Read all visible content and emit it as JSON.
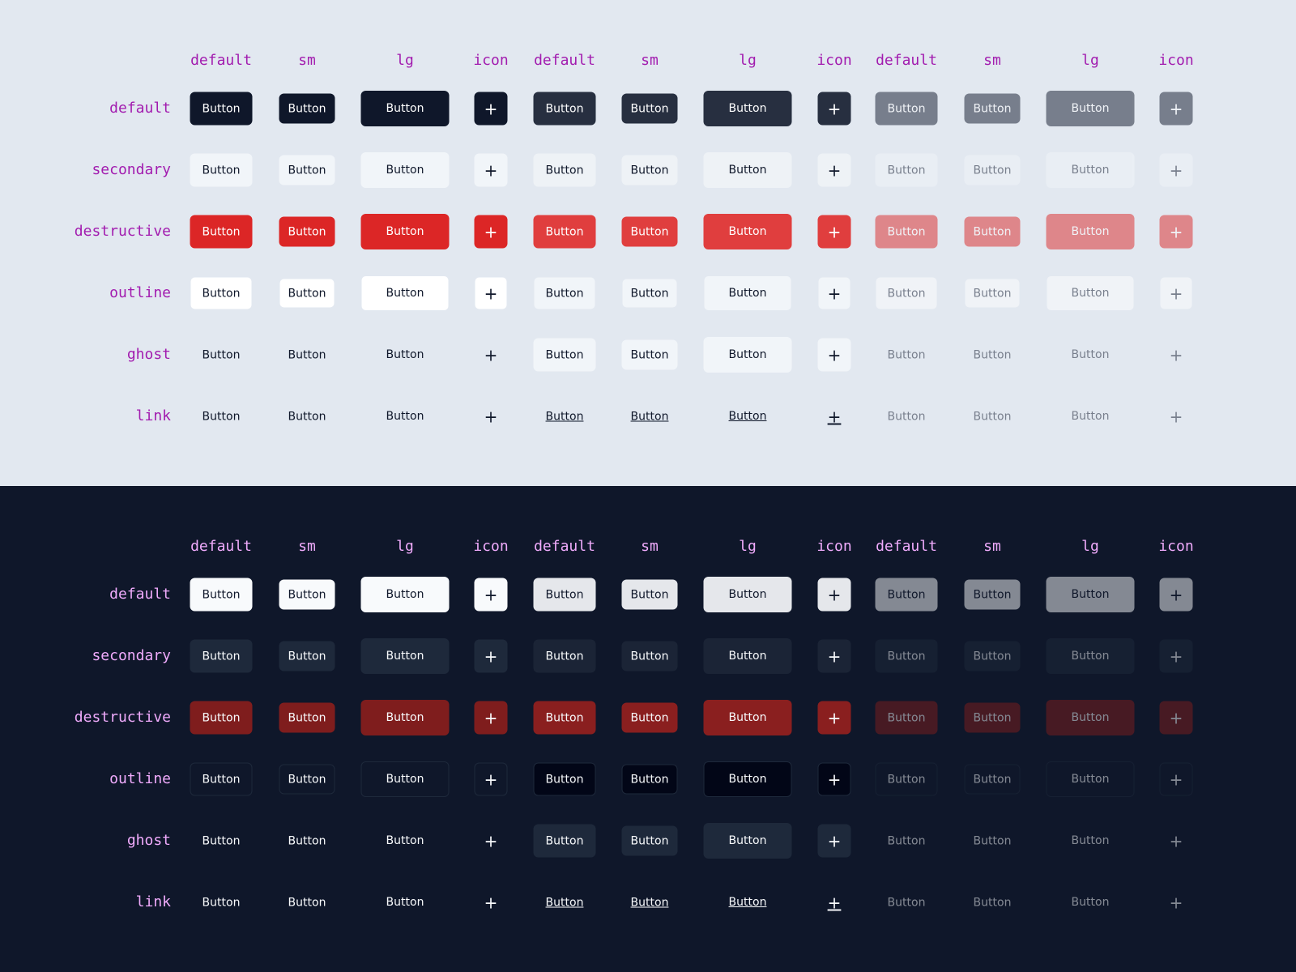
{
  "light": {
    "columns": [
      "default",
      "sm",
      "lg",
      "icon",
      "default",
      "sm",
      "lg",
      "icon",
      "default",
      "sm",
      "lg",
      "icon"
    ],
    "rows": [
      {
        "label": "default",
        "cells": [
          "Button",
          "Button",
          "Button",
          "+",
          "Button",
          "Button",
          "Button",
          "+",
          "Button",
          "Button",
          "Button",
          "+"
        ]
      },
      {
        "label": "secondary",
        "cells": [
          "Button",
          "Button",
          "Button",
          "+",
          "Button",
          "Button",
          "Button",
          "+",
          "Button",
          "Button",
          "Button",
          "+"
        ]
      },
      {
        "label": "destructive",
        "cells": [
          "Button",
          "Button",
          "Button",
          "+",
          "Button",
          "Button",
          "Button",
          "+",
          "Button",
          "Button",
          "Button",
          "+"
        ]
      },
      {
        "label": "outline",
        "cells": [
          "Button",
          "Button",
          "Button",
          "+",
          "Button",
          "Button",
          "Button",
          "+",
          "Button",
          "Button",
          "Button",
          "+"
        ]
      },
      {
        "label": "ghost",
        "cells": [
          "Button",
          "Button",
          "Button",
          "+",
          "Button",
          "Button",
          "Button",
          "+",
          "Button",
          "Button",
          "Button",
          "+"
        ]
      },
      {
        "label": "link",
        "cells": [
          "Button",
          "Button",
          "Button",
          "+",
          "Button",
          "Button",
          "Button",
          "+",
          "Button",
          "Button",
          "Button",
          "+"
        ]
      }
    ]
  },
  "dark": {
    "columns": [
      "default",
      "sm",
      "lg",
      "icon",
      "default",
      "sm",
      "lg",
      "icon",
      "default",
      "sm",
      "lg",
      "icon"
    ],
    "rows": [
      {
        "label": "default",
        "cells": [
          "Button",
          "Button",
          "Button",
          "+",
          "Button",
          "Button",
          "Button",
          "+",
          "Button",
          "Button",
          "Button",
          "+"
        ]
      },
      {
        "label": "secondary",
        "cells": [
          "Button",
          "Button",
          "Button",
          "+",
          "Button",
          "Button",
          "Button",
          "+",
          "Button",
          "Button",
          "Button",
          "+"
        ]
      },
      {
        "label": "destructive",
        "cells": [
          "Button",
          "Button",
          "Button",
          "+",
          "Button",
          "Button",
          "Button",
          "+",
          "Button",
          "Button",
          "Button",
          "+"
        ]
      },
      {
        "label": "outline",
        "cells": [
          "Button",
          "Button",
          "Button",
          "+",
          "Button",
          "Button",
          "Button",
          "+",
          "Button",
          "Button",
          "Button",
          "+"
        ]
      },
      {
        "label": "ghost",
        "cells": [
          "Button",
          "Button",
          "Button",
          "+",
          "Button",
          "Button",
          "Button",
          "+",
          "Button",
          "Button",
          "Button",
          "+"
        ]
      },
      {
        "label": "link",
        "cells": [
          "Button",
          "Button",
          "Button",
          "+",
          "Button",
          "Button",
          "Button",
          "+",
          "Button",
          "Button",
          "Button",
          "+"
        ]
      }
    ]
  }
}
